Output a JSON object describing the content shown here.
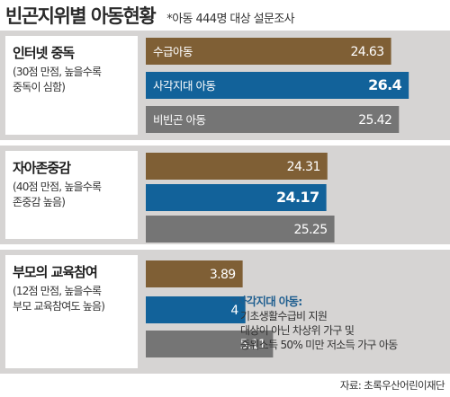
{
  "title": "빈곤지위별 아동현황",
  "subtitle": "*아동 444명 대상 설문조사",
  "source": "자료: 초록우산어린이재단",
  "note": {
    "title": "*사각지대 아동:",
    "lines": [
      "기초생활수급비 지원",
      "대상이 아닌 차상위 가구 및",
      "중위소득 50% 미만 저소득 가구 아동"
    ]
  },
  "chart_data": {
    "type": "bar",
    "series": [
      {
        "name": "수급아동",
        "color": "#7f5f35"
      },
      {
        "name": "사각지대 아동",
        "color": "#12629a"
      },
      {
        "name": "비빈곤 아동",
        "color": "#757575"
      }
    ],
    "groups": [
      {
        "title": "인터넷 중독",
        "desc": [
          "(30점 만점, 높을수록",
          "중독이 심함)"
        ],
        "max": 30,
        "values": [
          24.63,
          26.4,
          25.42
        ],
        "value_labels": [
          "24.63",
          "26.4",
          "25.42"
        ]
      },
      {
        "title": "자아존중감",
        "desc": [
          "(40점 만점, 높을수록",
          "존중감 높음)"
        ],
        "max": 40,
        "values": [
          24.31,
          24.17,
          25.25
        ],
        "value_labels": [
          "24.31",
          "24.17",
          "25.25"
        ]
      },
      {
        "title": "부모의 교육참여",
        "desc": [
          "(12점 만점, 높을수록",
          "부모 교육참여도 높음)"
        ],
        "max": 12,
        "values": [
          3.89,
          4,
          5.11
        ],
        "value_labels": [
          "3.89",
          "4",
          "5.11"
        ]
      }
    ]
  }
}
